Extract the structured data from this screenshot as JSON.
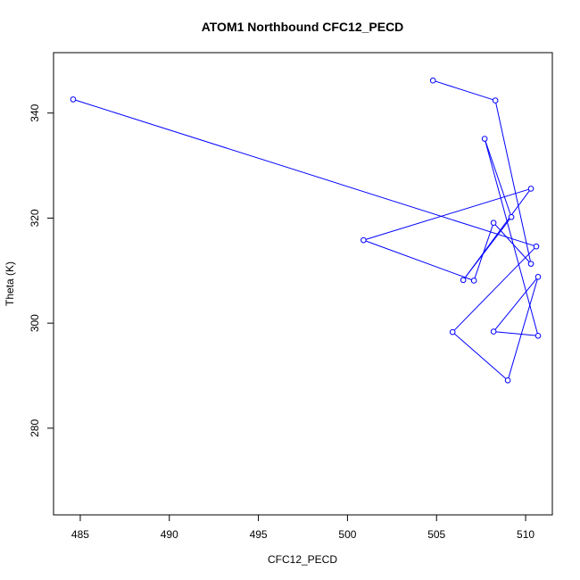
{
  "chart_data": {
    "type": "line",
    "title": "ATOM1 Northbound CFC12_PECD",
    "xlabel": "CFC12_PECD",
    "ylabel": "Theta (K)",
    "xlim": [
      483.5,
      511.5
    ],
    "ylim": [
      263.5,
      351.5
    ],
    "x_ticks": [
      485,
      490,
      495,
      500,
      505,
      510
    ],
    "x_tick_labels": [
      "485",
      "490",
      "495",
      "500",
      "505",
      "510"
    ],
    "y_ticks": [
      280,
      300,
      320,
      340
    ],
    "y_tick_labels": [
      "280",
      "300",
      "320",
      "340"
    ],
    "grid": false,
    "legend": "none",
    "markers": "open-circle",
    "color": "#0000ff",
    "series": [
      {
        "x": [
          484.6,
          510.6,
          505.9,
          509.0,
          510.7,
          508.2,
          510.7,
          507.7,
          509.2,
          506.5,
          510.3,
          500.9,
          507.1,
          508.2,
          510.3,
          508.3,
          504.8
        ],
        "y": [
          342.6,
          314.6,
          298.3,
          289.1,
          308.8,
          298.4,
          297.6,
          335.1,
          320.2,
          308.2,
          325.6,
          315.8,
          308.1,
          319.1,
          311.3,
          342.4,
          346.2
        ]
      }
    ]
  }
}
